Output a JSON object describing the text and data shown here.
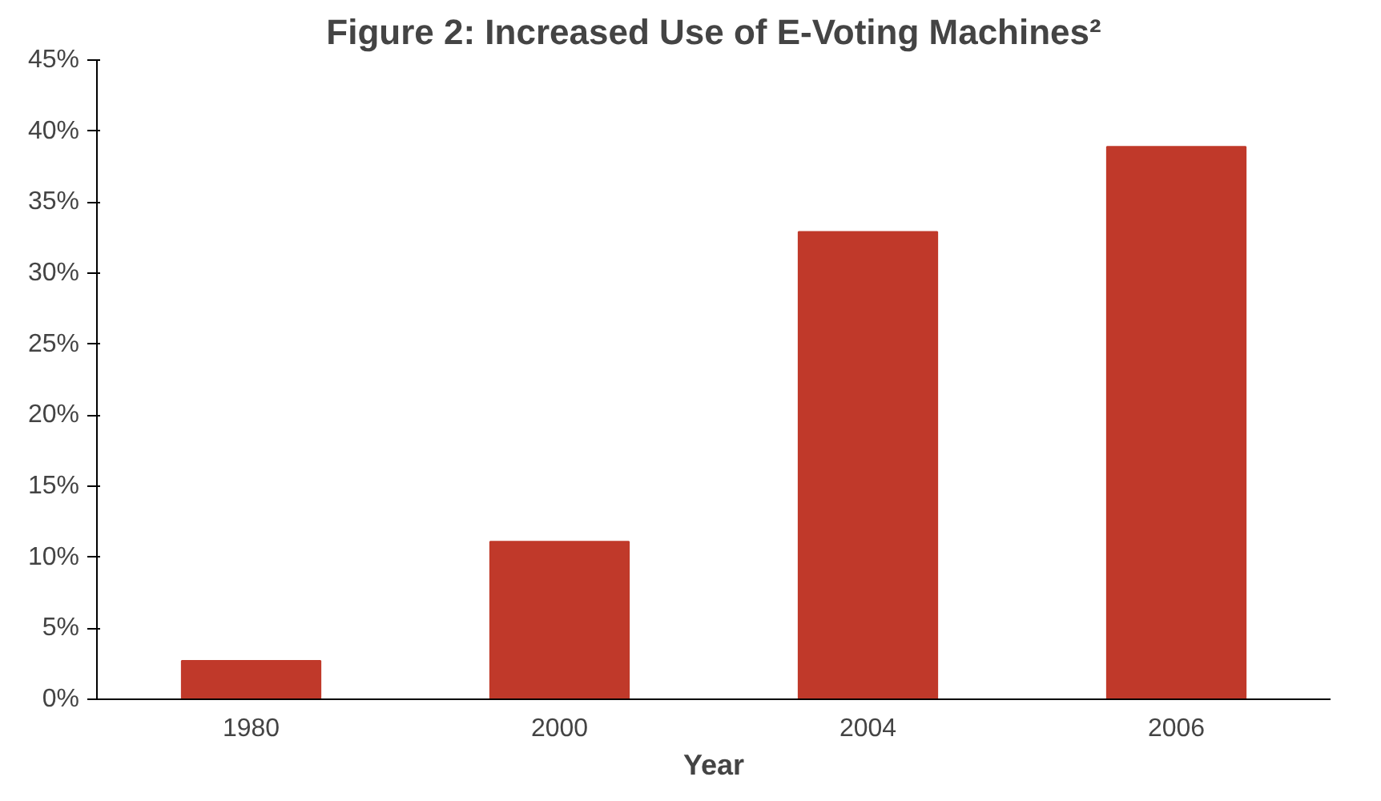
{
  "chart_data": {
    "type": "bar",
    "title": "Figure 2: Increased Use of E-Voting Machines²",
    "xlabel": "Year",
    "categories": [
      "1980",
      "2000",
      "2004",
      "2006"
    ],
    "values": [
      2.7,
      11.1,
      32.9,
      38.9
    ],
    "color": "#c0392a",
    "ylim": [
      0,
      45
    ],
    "yticks": [
      {
        "value": 0,
        "label": "0%"
      },
      {
        "value": 5,
        "label": "5%"
      },
      {
        "value": 10,
        "label": "10%"
      },
      {
        "value": 15,
        "label": "15%"
      },
      {
        "value": 20,
        "label": "20%"
      },
      {
        "value": 25,
        "label": "25%"
      },
      {
        "value": 30,
        "label": "30%"
      },
      {
        "value": 35,
        "label": "35%"
      },
      {
        "value": 40,
        "label": "40%"
      },
      {
        "value": 45,
        "label": "45%"
      }
    ],
    "grid": false
  }
}
